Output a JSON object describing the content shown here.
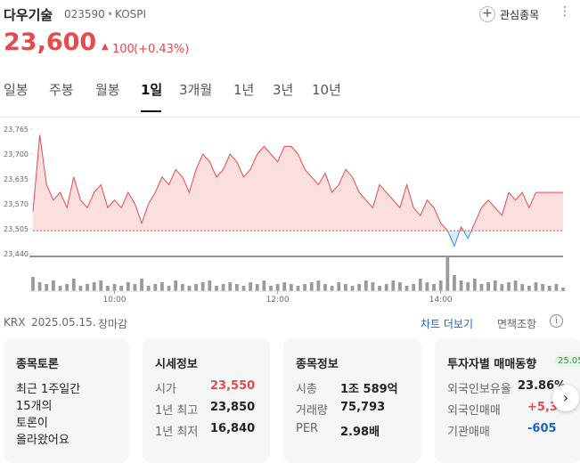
{
  "header": {
    "name": "다우기술",
    "code": "023590",
    "market": "KOSPI",
    "watch_button": "관심종목",
    "price": "23,600",
    "change": "100",
    "change_pct": "(+0.43%)"
  },
  "tabs": [
    "일봉",
    "주봉",
    "월봉",
    "1일",
    "3개월",
    "1년",
    "3년",
    "10년"
  ],
  "selected_tab": 3,
  "chart_data": {
    "type": "line",
    "ylim": [
      23440,
      23765
    ],
    "yticks": [
      {
        "value": 23440,
        "label": "23,440"
      },
      {
        "value": 23505,
        "label": "23,505"
      },
      {
        "value": 23570,
        "label": "23,570"
      },
      {
        "value": 23635,
        "label": "23,635"
      },
      {
        "value": 23700,
        "label": "23,700"
      },
      {
        "value": 23765,
        "label": "23,765"
      }
    ],
    "baseline": 23500,
    "up_color": "#e8494a",
    "down_color": "#3d8ce0",
    "volume_color": "#9a9a9a",
    "categories": [
      null,
      null,
      null,
      null,
      null,
      null,
      null,
      null,
      null,
      null,
      null,
      null,
      "10:00",
      null,
      null,
      null,
      null,
      null,
      null,
      null,
      null,
      null,
      null,
      null,
      null,
      null,
      null,
      null,
      null,
      null,
      null,
      null,
      null,
      null,
      null,
      null,
      "12:00",
      null,
      null,
      null,
      null,
      null,
      null,
      null,
      null,
      null,
      null,
      null,
      null,
      null,
      null,
      null,
      null,
      null,
      null,
      null,
      null,
      null,
      null,
      null,
      "14:00",
      null,
      null,
      null,
      null,
      null,
      null,
      null,
      null,
      null,
      null,
      null,
      null,
      null,
      null,
      null,
      null,
      null,
      null
    ],
    "series": [
      {
        "name": "price",
        "values": [
          23550,
          23750,
          23620,
          23580,
          23600,
          23560,
          23640,
          23580,
          23560,
          23600,
          23620,
          23560,
          23580,
          23560,
          23600,
          23570,
          23520,
          23570,
          23600,
          23640,
          23620,
          23660,
          23640,
          23600,
          23660,
          23700,
          23680,
          23640,
          23660,
          23700,
          23680,
          23640,
          23660,
          23700,
          23720,
          23700,
          23680,
          23720,
          23720,
          23700,
          23660,
          23640,
          23620,
          23650,
          23600,
          23620,
          23660,
          23640,
          23600,
          23580,
          23560,
          23620,
          23600,
          23580,
          23560,
          23620,
          23560,
          23540,
          23580,
          23560,
          23520,
          23500,
          23460,
          23510,
          23480,
          23520,
          23560,
          23580,
          23560,
          23540,
          23600,
          23580,
          23600,
          23560,
          23600,
          23600,
          23600,
          23600,
          23600
        ]
      }
    ],
    "volume": [
      40,
      25,
      20,
      30,
      15,
      20,
      35,
      15,
      20,
      25,
      30,
      15,
      20,
      15,
      25,
      20,
      35,
      15,
      20,
      25,
      15,
      30,
      20,
      15,
      20,
      25,
      30,
      15,
      20,
      25,
      20,
      15,
      25,
      20,
      30,
      15,
      20,
      25,
      20,
      15,
      20,
      25,
      30,
      20,
      15,
      25,
      20,
      15,
      20,
      30,
      25,
      15,
      20,
      30,
      25,
      15,
      20,
      35,
      25,
      20,
      30,
      100,
      45,
      30,
      25,
      35,
      20,
      25,
      30,
      20,
      25,
      30,
      20,
      15,
      25,
      20,
      15,
      20,
      10
    ]
  },
  "footer": {
    "exchange": "KRX",
    "date": "2025.05.15.",
    "status": "장마감",
    "more": "차트 더보기",
    "disclaimer": "면책조항"
  },
  "cards": [
    {
      "title": "종목토론",
      "lines": [
        "최근 1주일간",
        "15개의",
        "토론이",
        "올라왔어요"
      ]
    },
    {
      "title": "시세정보",
      "rows": [
        [
          "시가",
          "23,550"
        ],
        [
          "1년 최고",
          "23,850"
        ],
        [
          "1년 최저",
          "16,840"
        ]
      ]
    },
    {
      "title": "종목정보",
      "rows": [
        [
          "시총",
          "1조 589억"
        ],
        [
          "거래량",
          "75,793"
        ],
        [
          "PER",
          "2.98배"
        ]
      ]
    },
    {
      "title": "투자자별 매매동향",
      "badge": "25.05",
      "rows": [
        [
          "외국인보유율",
          "23.86%"
        ],
        [
          "외국인매매",
          "+5,3"
        ],
        [
          "기관매매",
          "-605"
        ]
      ]
    }
  ]
}
